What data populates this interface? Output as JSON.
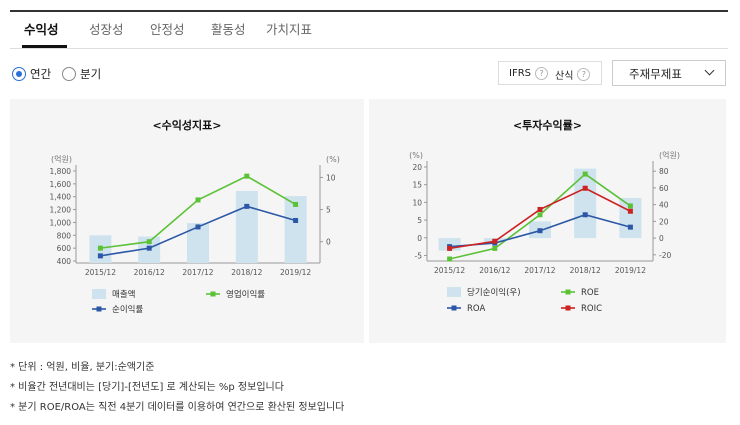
{
  "tabs": [
    {
      "label": "수익성",
      "active": true
    },
    {
      "label": "성장성",
      "active": false
    },
    {
      "label": "안정성",
      "active": false
    },
    {
      "label": "활동성",
      "active": false
    },
    {
      "label": "가치지표",
      "active": false
    }
  ],
  "period": {
    "annual_label": "연간",
    "quarter_label": "분기",
    "selected": "연간"
  },
  "options": {
    "ifrs_label": "IFRS",
    "calc_label": "산식",
    "help_glyph": "?"
  },
  "statement_select": {
    "value": "주재무제표"
  },
  "accent_colors": {
    "bar": "#cfe3ee",
    "green": "#5bc236",
    "blue": "#2c57a6",
    "red": "#cc2222"
  },
  "chart_data": [
    {
      "type": "bar+line",
      "title": "<수익성지표>",
      "y_left_unit": "(억원)",
      "y_right_unit": "(%)",
      "y_left_ticks": [
        "1,800",
        "1,600",
        "1,400",
        "1,200",
        "1,000",
        "800",
        "600",
        "400"
      ],
      "y_right_ticks": [
        "10",
        "5",
        "0"
      ],
      "ylim_left": [
        400,
        1800
      ],
      "ylim_right": [
        -3,
        11
      ],
      "categories": [
        "2015/12",
        "2016/12",
        "2017/12",
        "2018/12",
        "2019/12"
      ],
      "bars": {
        "name": "매출액",
        "values": [
          800,
          780,
          990,
          1490,
          1410
        ]
      },
      "lines": [
        {
          "name": "영업이익률",
          "color": "green",
          "values": [
            -1,
            0,
            6.5,
            10.2,
            5.8
          ]
        },
        {
          "name": "순이익률",
          "color": "blue",
          "values": [
            -2.2,
            -1,
            2.3,
            5.5,
            3.3
          ]
        }
      ]
    },
    {
      "type": "bar+line",
      "title": "<투자수익률>",
      "y_left_unit": "(%)",
      "y_right_unit": "(억원)",
      "y_left_ticks": [
        "20",
        "15",
        "10",
        "5",
        "0",
        "-5"
      ],
      "y_right_ticks": [
        "80",
        "60",
        "40",
        "20",
        "0",
        "-20"
      ],
      "ylim_left": [
        -6,
        20
      ],
      "ylim_right": [
        -25,
        85
      ],
      "categories": [
        "2015/12",
        "2016/12",
        "2017/12",
        "2018/12",
        "2019/12"
      ],
      "bars": {
        "name": "당기순이익(우)",
        "values": [
          -15,
          -5,
          20,
          83,
          48
        ]
      },
      "lines": [
        {
          "name": "ROE",
          "color": "green",
          "values": [
            -6,
            -3,
            6.5,
            18,
            9
          ]
        },
        {
          "name": "ROA",
          "color": "blue",
          "values": [
            -2.5,
            -1.5,
            2,
            6.5,
            3
          ]
        },
        {
          "name": "ROIC",
          "color": "red",
          "values": [
            -3,
            -1,
            8,
            14,
            7.5
          ]
        }
      ]
    }
  ],
  "notes": [
    "* 단위 : 억원, 비율, 분기:순액기준",
    "* 비율간 전년대비는 [당기]-[전년도] 로 계산되는 %p 정보입니다",
    "* 분기 ROE/ROA는 직전 4분기 데이터를 이용하여 연간으로 환산된 정보입니다"
  ]
}
